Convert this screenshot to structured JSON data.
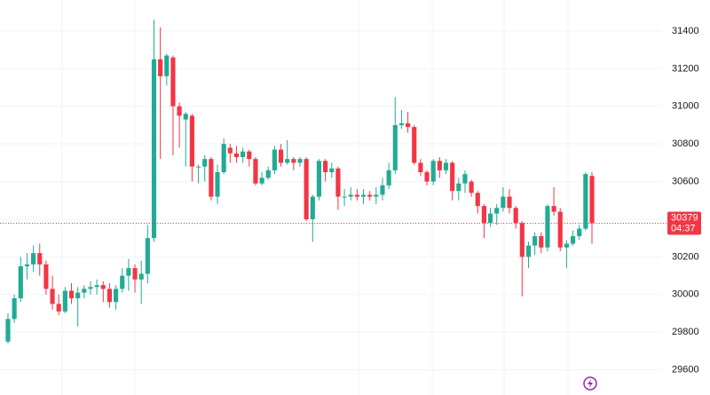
{
  "chart_data": {
    "type": "candlestick",
    "open": [
      29750,
      29870,
      29980,
      30150,
      30160,
      30220,
      30160,
      30030,
      29950,
      29910,
      30020,
      29980,
      30010,
      30030,
      30040,
      30050,
      30030,
      29960,
      30030,
      30100,
      30140,
      30080,
      30110,
      30300,
      31250,
      31160,
      31260,
      31000,
      30930,
      30950,
      30680,
      30680,
      30720,
      30520,
      30650,
      30780,
      30750,
      30730,
      30760,
      30720,
      30590,
      30620,
      30660,
      30770,
      30700,
      30720,
      30700,
      30720,
      30400,
      30520,
      30710,
      30650,
      30670,
      30520,
      30520,
      30530,
      30520,
      30530,
      30520,
      30530,
      30580,
      30660,
      30900,
      30910,
      30890,
      30700,
      30650,
      30600,
      30710,
      30660,
      30700,
      30550,
      30590,
      30600,
      30540,
      30470,
      30380,
      30430,
      30460,
      30520,
      30460,
      30380,
      30200,
      30260,
      30310,
      30250,
      30470,
      30440,
      30250,
      30270,
      30310,
      30350,
      30630
    ],
    "high": [
      29900,
      30000,
      30200,
      30220,
      30260,
      30270,
      30180,
      30100,
      30000,
      30040,
      30060,
      30040,
      30050,
      30070,
      30080,
      30070,
      30060,
      30050,
      30140,
      30190,
      30160,
      30180,
      30370,
      31460,
      31420,
      31280,
      31270,
      31020,
      30970,
      30960,
      30690,
      30740,
      30730,
      30690,
      30830,
      30800,
      30790,
      30780,
      30770,
      30730,
      30650,
      30680,
      30790,
      30800,
      30820,
      30730,
      30730,
      30730,
      30530,
      30720,
      30720,
      30700,
      30680,
      30560,
      30570,
      30560,
      30560,
      30550,
      30570,
      30620,
      30700,
      31050,
      30980,
      30970,
      30900,
      30720,
      30660,
      30720,
      30730,
      30720,
      30710,
      30620,
      30660,
      30610,
      30550,
      30480,
      30460,
      30480,
      30570,
      30560,
      30470,
      30390,
      30280,
      30330,
      30330,
      30480,
      30570,
      30460,
      30290,
      30340,
      30370,
      30650,
      30650
    ],
    "low": [
      29740,
      29850,
      29960,
      30080,
      30120,
      30100,
      30000,
      29920,
      29890,
      29900,
      29950,
      29830,
      29980,
      30000,
      30000,
      29960,
      29930,
      29920,
      30010,
      30020,
      30010,
      29950,
      30060,
      30280,
      30720,
      31110,
      30740,
      30780,
      30680,
      30600,
      30590,
      30600,
      30500,
      30480,
      30640,
      30700,
      30700,
      30700,
      30680,
      30580,
      30580,
      30610,
      30640,
      30680,
      30690,
      30660,
      30680,
      30390,
      30280,
      30500,
      30600,
      30620,
      30450,
      30470,
      30500,
      30500,
      30480,
      30500,
      30480,
      30500,
      30560,
      30640,
      30880,
      30860,
      30690,
      30630,
      30580,
      30580,
      30620,
      30640,
      30500,
      30500,
      30540,
      30520,
      30430,
      30300,
      30360,
      30370,
      30440,
      30430,
      30350,
      29990,
      30140,
      30210,
      30220,
      30230,
      30420,
      30230,
      30140,
      30260,
      30290,
      30340,
      30270
    ],
    "close": [
      29870,
      29980,
      30150,
      30160,
      30220,
      30160,
      30030,
      29950,
      29910,
      30020,
      29980,
      30010,
      30030,
      30040,
      30050,
      30030,
      29960,
      30030,
      30100,
      30140,
      30080,
      30110,
      30300,
      31250,
      31160,
      31270,
      31000,
      30950,
      30960,
      30680,
      30680,
      30720,
      30520,
      30650,
      30800,
      30750,
      30730,
      30760,
      30720,
      30590,
      30620,
      30660,
      30770,
      30700,
      30720,
      30700,
      30720,
      30400,
      30520,
      30710,
      30650,
      30670,
      30520,
      30520,
      30530,
      30520,
      30530,
      30520,
      30530,
      30580,
      30660,
      30900,
      30910,
      30890,
      30700,
      30650,
      30600,
      30710,
      30660,
      30700,
      30550,
      30590,
      30640,
      30540,
      30470,
      30380,
      30430,
      30460,
      30520,
      30460,
      30380,
      30200,
      30260,
      30310,
      30250,
      30470,
      30440,
      30250,
      30270,
      30310,
      30350,
      30640,
      30379
    ],
    "up_color": "#22ab94",
    "down_color": "#f23645",
    "ylim": [
      29466,
      31565
    ],
    "yticks": [
      29600,
      29800,
      30000,
      30200,
      30400,
      30600,
      30800,
      31000,
      31200,
      31400
    ],
    "grid": true,
    "countdown": "04:37"
  }
}
